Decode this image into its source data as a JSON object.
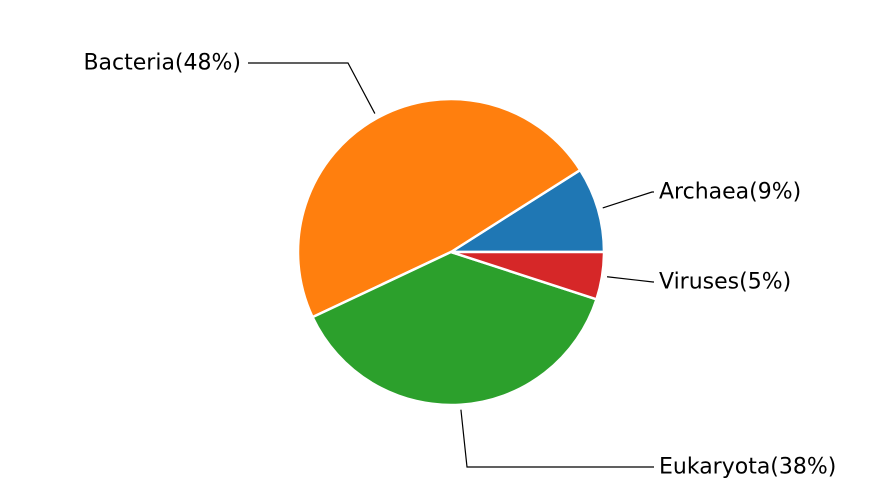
{
  "chart_data": {
    "type": "pie",
    "title": "",
    "start_angle_deg": 0,
    "direction": "counterclockwise",
    "slices": [
      {
        "label": "Archaea(9%)",
        "name": "Archaea",
        "value": 9,
        "color": "#1f77b4"
      },
      {
        "label": "Bacteria(48%)",
        "name": "Bacteria",
        "value": 48,
        "color": "#ff7f0e"
      },
      {
        "label": "Eukaryota(38%)",
        "name": "Eukaryota",
        "value": 38,
        "color": "#2ca02c"
      },
      {
        "label": "Viruses(5%)",
        "name": "Viruses",
        "value": 5,
        "color": "#d62728"
      }
    ],
    "edge_color": "#ffffff",
    "leader_line_color": "#000000"
  }
}
